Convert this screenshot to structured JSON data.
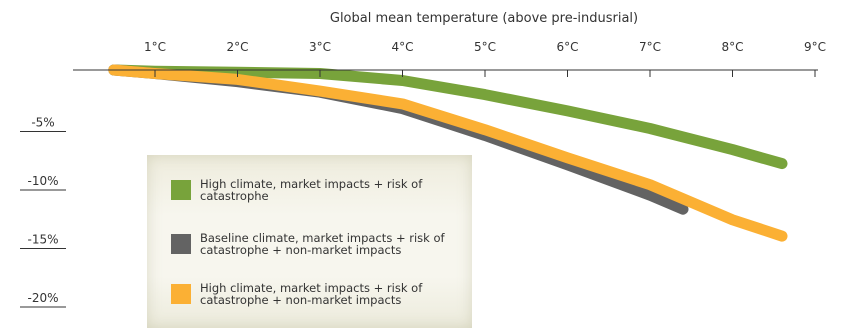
{
  "chart_data": {
    "type": "line",
    "title": "Global mean temperature (above pre-indusrial)",
    "x_ticks": [
      "1°C",
      "2°C",
      "3°C",
      "4°C",
      "5°C",
      "6°C",
      "7°C",
      "8°C",
      "9°C"
    ],
    "y_ticks": [
      "-5%",
      "-10%",
      "-15%",
      "-20%"
    ],
    "xlim": [
      0.5,
      9
    ],
    "ylim": [
      -21,
      0
    ],
    "grid": false,
    "legend_position": "bottom-left",
    "series": [
      {
        "name": "High climate, market impacts + risk of catastrophe",
        "color": "#78a33b",
        "x": [
          0.5,
          1,
          2,
          3,
          4,
          5,
          6,
          7,
          8,
          8.6
        ],
        "y": [
          0,
          -0.1,
          -0.2,
          -0.3,
          -0.9,
          -2.1,
          -3.5,
          -5.0,
          -6.8,
          -8.0
        ]
      },
      {
        "name": "Baseline climate, market impacts + risk of catastrophe + non-market impacts",
        "color": "#636363",
        "x": [
          0.5,
          1,
          2,
          3,
          4,
          5,
          6,
          7,
          7.4
        ],
        "y": [
          0,
          -0.3,
          -1.0,
          -1.9,
          -3.3,
          -5.6,
          -8.1,
          -10.7,
          -11.9
        ]
      },
      {
        "name": "High climate, market impacts + risk of catastrophe + non-market impacts",
        "color": "#fbb034",
        "x": [
          0.5,
          1,
          2,
          3,
          4,
          5,
          6,
          7,
          8,
          8.6
        ],
        "y": [
          0,
          -0.3,
          -0.8,
          -1.8,
          -2.9,
          -5.1,
          -7.5,
          -9.8,
          -12.8,
          -14.2
        ]
      }
    ]
  }
}
